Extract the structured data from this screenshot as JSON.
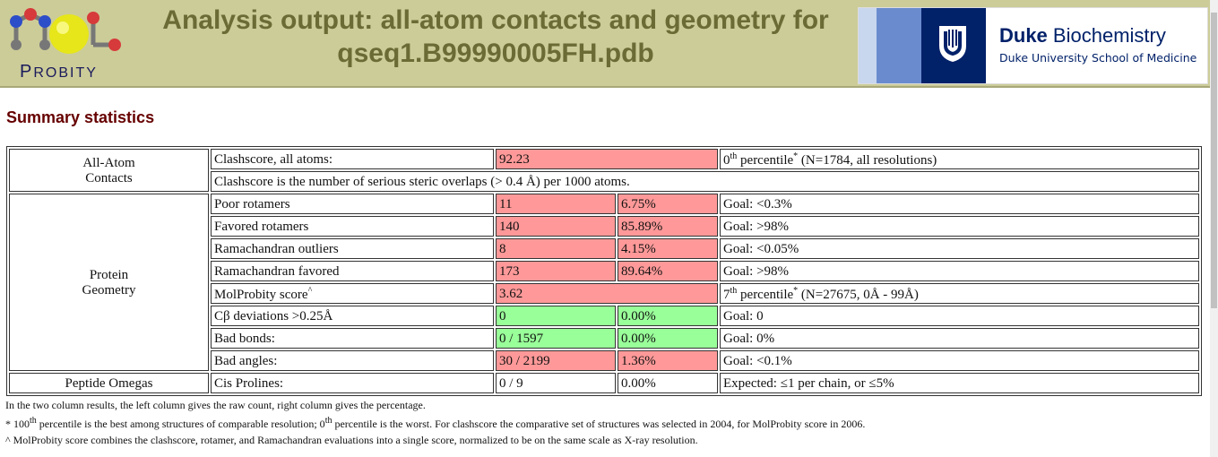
{
  "header": {
    "logo_text_first": "P",
    "logo_text_rest": "ROBITY",
    "title_line1": "Analysis output: all-atom contacts and geometry for",
    "title_line2": "qseq1.B99990005FH.pdb",
    "duke_name_bold": "Duke",
    "duke_name_rest": "Biochemistry",
    "duke_sub": "Duke University School of Medicine"
  },
  "summary_heading": "Summary statistics",
  "table": {
    "cat_contacts_1": "All-Atom",
    "cat_contacts_2": "Contacts",
    "cat_geometry_1": "Protein",
    "cat_geometry_2": "Geometry",
    "cat_omegas": "Peptide Omegas",
    "clash_label": "Clashscore, all atoms:",
    "clash_value": "92.23",
    "clash_pct_num": "0",
    "clash_pct_sup": "th",
    "clash_pct_text": "percentile",
    "clash_pct_star": "*",
    "clash_pct_n": "(N=1784, all resolutions)",
    "clash_note": "Clashscore is the number of serious steric overlaps (> 0.4 Å) per 1000 atoms.",
    "rows": [
      {
        "label": "Poor rotamers",
        "v1": "11",
        "v2": "6.75%",
        "goal": "Goal: <0.3%"
      },
      {
        "label": "Favored rotamers",
        "v1": "140",
        "v2": "85.89%",
        "goal": "Goal: >98%"
      },
      {
        "label": "Ramachandran outliers",
        "v1": "8",
        "v2": "4.15%",
        "goal": "Goal: <0.05%"
      },
      {
        "label": "Ramachandran favored",
        "v1": "173",
        "v2": "89.64%",
        "goal": "Goal: >98%"
      },
      {
        "label": "Cβ deviations >0.25Å",
        "v1": "0",
        "v2": "0.00%",
        "goal": "Goal: 0"
      },
      {
        "label": "Bad bonds:",
        "v1": "0 / 1597",
        "v2": "0.00%",
        "goal": "Goal: 0%"
      },
      {
        "label": "Bad angles:",
        "v1": "30 / 2199",
        "v2": "1.36%",
        "goal": "Goal: <0.1%"
      }
    ],
    "molprobity_label": "MolProbity score",
    "molprobity_caret": "^",
    "molprobity_value": "3.62",
    "mp_pct_num": "7",
    "mp_pct_sup": "th",
    "mp_pct_text": "percentile",
    "mp_pct_star": "*",
    "mp_pct_n": "(N=27675, 0Å - 99Å)",
    "cis_label": "Cis Prolines:",
    "cis_v1": "0 / 9",
    "cis_v2": "0.00%",
    "cis_expected": "Expected: ≤1 per chain, or ≤5%"
  },
  "notes": {
    "line1": "In the two column results, the left column gives the raw count, right column gives the percentage.",
    "line2_a": "* 100",
    "line2_sup1": "th",
    "line2_b": " percentile is the best among structures of comparable resolution; 0",
    "line2_sup2": "th",
    "line2_c": " percentile is the worst. For clashscore the comparative set of structures was selected in 2004, for MolProbity score in 2006.",
    "line3": "^ MolProbity score combines the clashscore, rotamer, and Ramachandran evaluations into a single score, normalized to be on the same scale as X-ray resolution."
  },
  "colors": {
    "bad": "#ff9999",
    "good": "#99ff99",
    "banner": "#cccc99"
  }
}
